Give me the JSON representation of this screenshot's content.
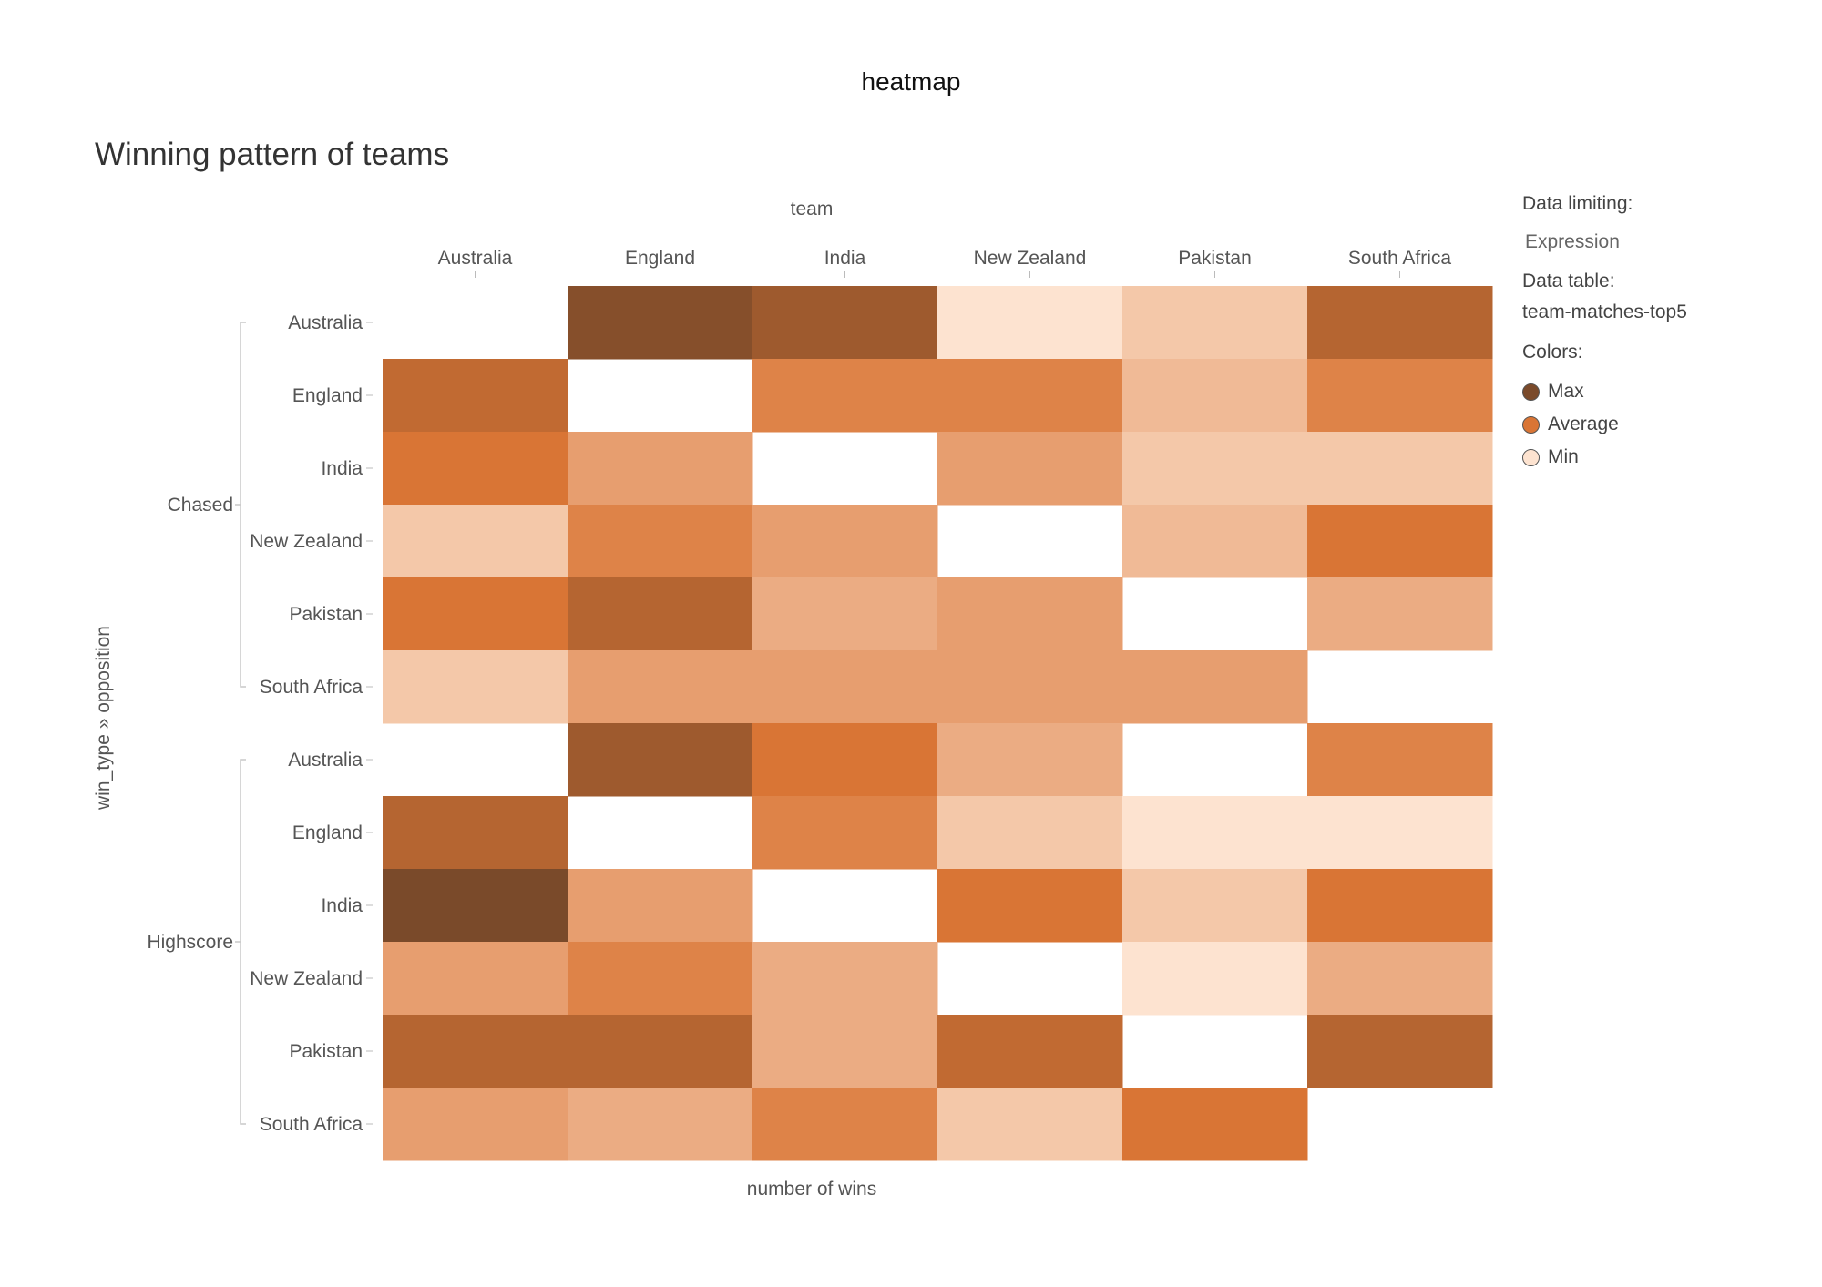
{
  "page": {
    "heading": "heatmap"
  },
  "legend": {
    "data_limiting_label": "Data limiting:",
    "data_limiting_value": "Expression",
    "data_table_label": "Data table:",
    "data_table_value": "team-matches-top5",
    "colors_label": "Colors:",
    "items": [
      {
        "label": "Max",
        "color": "#7a4a2a"
      },
      {
        "label": "Average",
        "color": "#d97535"
      },
      {
        "label": "Min",
        "color": "#fde3d0"
      }
    ]
  },
  "chart_data": {
    "type": "heatmap",
    "title": "Winning pattern of teams",
    "x_title": "team",
    "y_title": "win_type » opposition",
    "value_label": "number of wins",
    "x_categories": [
      "Australia",
      "England",
      "India",
      "New Zealand",
      "Pakistan",
      "South Africa"
    ],
    "y_groups": [
      {
        "name": "Chased",
        "items": [
          "Australia",
          "England",
          "India",
          "New Zealand",
          "Pakistan",
          "South Africa"
        ]
      },
      {
        "name": "Highscore",
        "items": [
          "Australia",
          "England",
          "India",
          "New Zealand",
          "Pakistan",
          "South Africa"
        ]
      }
    ],
    "value_range": [
      1,
      9
    ],
    "values": [
      [
        null,
        8.5,
        7.5,
        1,
        2,
        6.5
      ],
      [
        6,
        null,
        4.5,
        4.5,
        2.5,
        4.5
      ],
      [
        5,
        3.5,
        null,
        3.5,
        2,
        2
      ],
      [
        2,
        4.5,
        3.5,
        null,
        2.5,
        5
      ],
      [
        5,
        6.5,
        3,
        3.5,
        null,
        3
      ],
      [
        2,
        3.5,
        3.5,
        3.5,
        3.5,
        null
      ],
      [
        null,
        7.5,
        5,
        3,
        null,
        4.5
      ],
      [
        6.5,
        null,
        4.5,
        2,
        1,
        1
      ],
      [
        9,
        3.5,
        null,
        5,
        2,
        5
      ],
      [
        3.5,
        4.5,
        3,
        null,
        1,
        3
      ],
      [
        6.5,
        6.5,
        3,
        6,
        null,
        6.5
      ],
      [
        3.5,
        3,
        4.5,
        2,
        5,
        null
      ]
    ],
    "colors": {
      "min": "#fde3d0",
      "avg": "#d97535",
      "max": "#7a4a2a"
    },
    "legend_position": "right",
    "grid": false
  }
}
